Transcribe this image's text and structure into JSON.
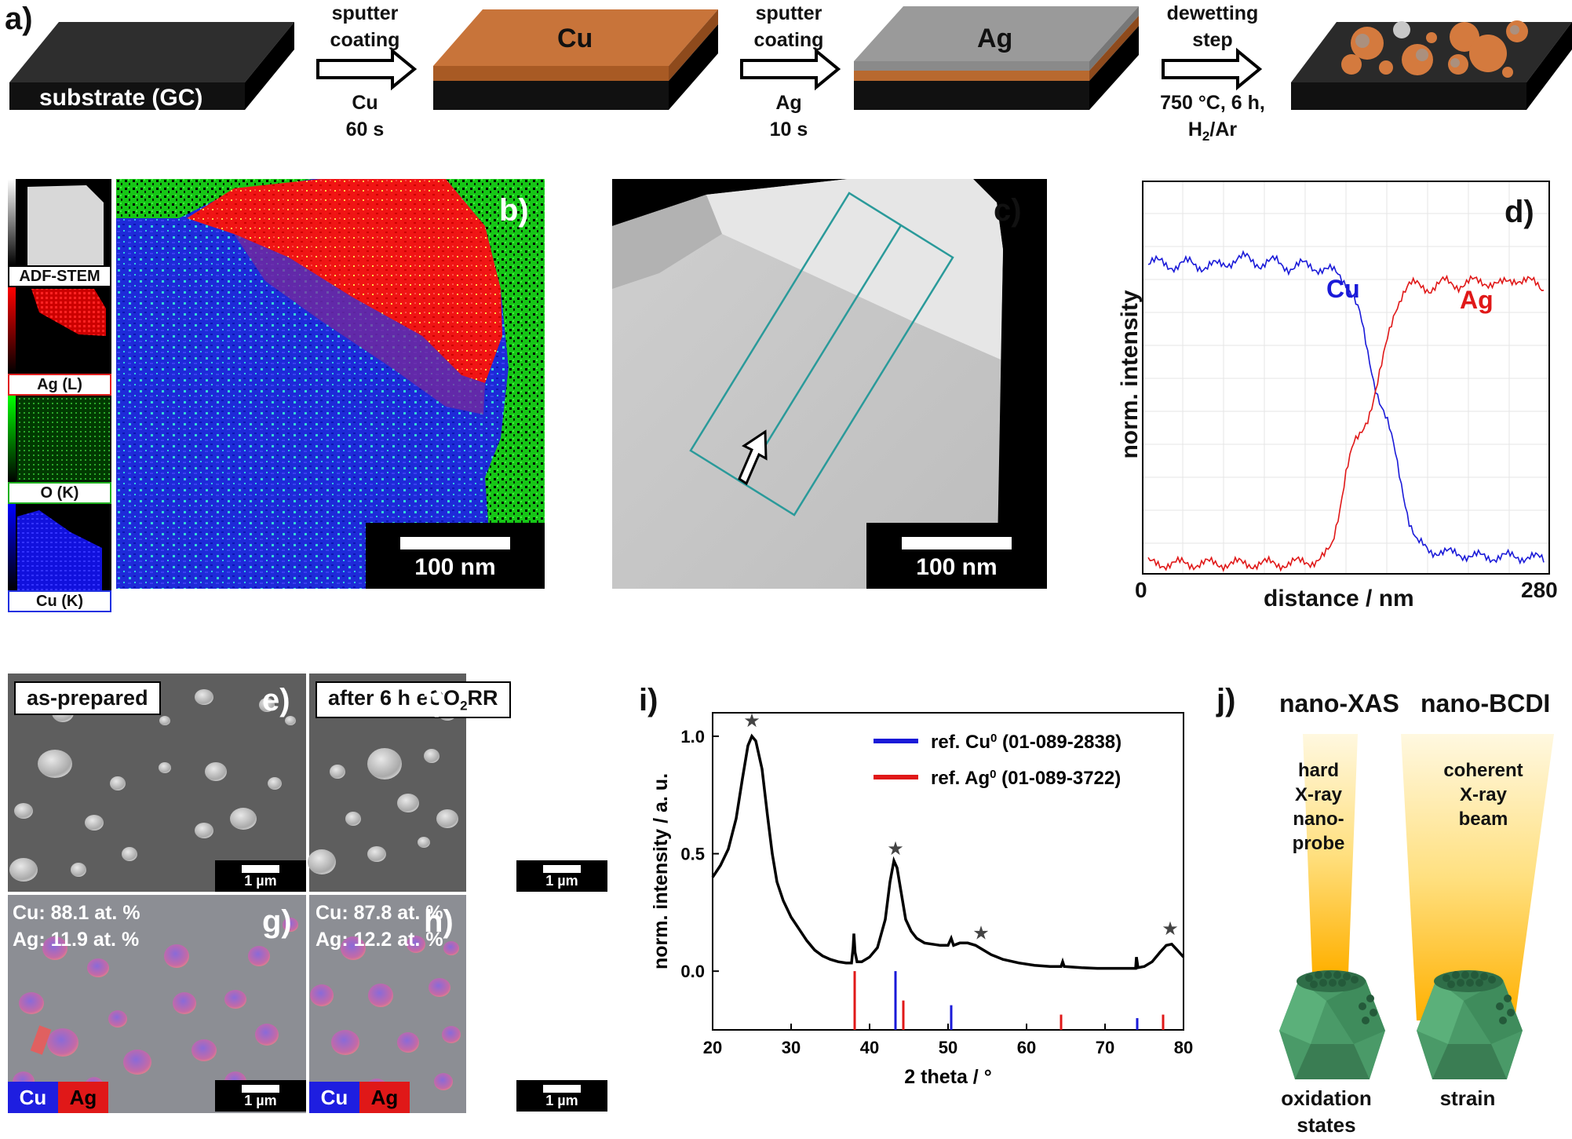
{
  "panel_a": {
    "label": "a)",
    "substrate_label": "substrate (GC)",
    "cu_layer_label": "Cu",
    "ag_layer_label": "Ag",
    "step1": {
      "top_1": "sputter",
      "top_2": "coating",
      "bottom_1": "Cu",
      "bottom_2": "60 s"
    },
    "step2": {
      "top_1": "sputter",
      "top_2": "coating",
      "bottom_1": "Ag",
      "bottom_2": "10 s"
    },
    "step3": {
      "top_1": "dewetting",
      "top_2": "step",
      "bottom_1": "750 °C, 6 h,",
      "bottom_2_main": "H",
      "bottom_2_sub": "2",
      "bottom_2_end": "/Ar"
    }
  },
  "panel_b": {
    "label": "b)",
    "scale_bar": "100 nm",
    "thumbnails": [
      {
        "label": "ADF-STEM",
        "color": "#000000"
      },
      {
        "label": "Ag (L)",
        "color": "#e02020"
      },
      {
        "label": "O (K)",
        "color": "#20b020"
      },
      {
        "label": "Cu (K)",
        "color": "#2030e0"
      }
    ]
  },
  "panel_c": {
    "label": "c)",
    "scale_bar": "100 nm"
  },
  "panel_d": {
    "label": "d)",
    "ylabel": "norm. intensity",
    "xlabel": "distance / nm",
    "x_min_label": "0",
    "x_max_label": "280",
    "cu_label": "Cu",
    "ag_label": "Ag",
    "cu_color": "#1a1ad8",
    "ag_color": "#e01818"
  },
  "panel_e": {
    "label": "e)",
    "tag": "as-prepared",
    "scale_bar": "1 µm"
  },
  "panel_f": {
    "label": "f)",
    "tag_main": "after 6 h eCO",
    "tag_sub": "2",
    "tag_end": "RR",
    "scale_bar": "1 µm"
  },
  "panel_g": {
    "label": "g)",
    "line1": "Cu: 88.1 at. %",
    "line2": "Ag: 11.9 at. %",
    "legend_cu": "Cu",
    "legend_ag": "Ag",
    "scale_bar": "1 µm"
  },
  "panel_h": {
    "label": "h)",
    "line1": "Cu: 87.8 at. %",
    "line2": "Ag: 12.2 at. %",
    "legend_cu": "Cu",
    "legend_ag": "Ag",
    "scale_bar": "1 µm"
  },
  "panel_i": {
    "label": "i)"
  },
  "panel_j": {
    "label": "j)",
    "col1_title": "nano-XAS",
    "col2_title": "nano-BCDI",
    "beam1_lines": [
      "hard",
      "X-ray",
      "nano-",
      "probe"
    ],
    "beam2_lines": [
      "coherent",
      "X-ray",
      "beam"
    ],
    "col1_bottom_1": "oxidation",
    "col1_bottom_2": "states",
    "col2_bottom": "strain"
  },
  "chart_data": [
    {
      "type": "line",
      "xlabel": "2 theta / °",
      "ylabel": "norm. intensity / a. u.",
      "xlim": [
        20,
        80
      ],
      "ylim": [
        -0.25,
        1.1
      ],
      "x_ticks": [
        20,
        30,
        40,
        50,
        60,
        70,
        80
      ],
      "y_ticks": [
        0.0,
        0.5,
        1.0
      ],
      "y_tick_labels": [
        "0.0",
        "0.5",
        "1.0"
      ],
      "grid": false,
      "legend_position": "top-right",
      "series": [
        {
          "color": "#000000",
          "points": [
            [
              20,
              0.4
            ],
            [
              21,
              0.45
            ],
            [
              22,
              0.52
            ],
            [
              23,
              0.65
            ],
            [
              23.8,
              0.82
            ],
            [
              24.5,
              0.96
            ],
            [
              25,
              1.0
            ],
            [
              25.5,
              0.98
            ],
            [
              26.3,
              0.86
            ],
            [
              27,
              0.66
            ],
            [
              27.6,
              0.5
            ],
            [
              28.2,
              0.38
            ],
            [
              29,
              0.3
            ],
            [
              30,
              0.23
            ],
            [
              31,
              0.18
            ],
            [
              32,
              0.13
            ],
            [
              33,
              0.09
            ],
            [
              34,
              0.065
            ],
            [
              35,
              0.05
            ],
            [
              36,
              0.04
            ],
            [
              37,
              0.035
            ],
            [
              37.7,
              0.035
            ],
            [
              37.9,
              0.1
            ],
            [
              38.0,
              0.16
            ],
            [
              38.15,
              0.08
            ],
            [
              38.4,
              0.04
            ],
            [
              39,
              0.04
            ],
            [
              40,
              0.06
            ],
            [
              41,
              0.1
            ],
            [
              42,
              0.22
            ],
            [
              42.6,
              0.38
            ],
            [
              43.1,
              0.47
            ],
            [
              43.5,
              0.44
            ],
            [
              44,
              0.34
            ],
            [
              44.6,
              0.22
            ],
            [
              45.3,
              0.17
            ],
            [
              46,
              0.14
            ],
            [
              47,
              0.12
            ],
            [
              48,
              0.115
            ],
            [
              49,
              0.11
            ],
            [
              50,
              0.11
            ],
            [
              50.4,
              0.14
            ],
            [
              50.7,
              0.11
            ],
            [
              51.5,
              0.12
            ],
            [
              52.5,
              0.12
            ],
            [
              53.5,
              0.11
            ],
            [
              54.5,
              0.09
            ],
            [
              55.5,
              0.07
            ],
            [
              57,
              0.05
            ],
            [
              59,
              0.035
            ],
            [
              61,
              0.025
            ],
            [
              63,
              0.02
            ],
            [
              64.4,
              0.02
            ],
            [
              64.6,
              0.04
            ],
            [
              64.8,
              0.02
            ],
            [
              67,
              0.015
            ],
            [
              69,
              0.012
            ],
            [
              71,
              0.012
            ],
            [
              73,
              0.012
            ],
            [
              73.9,
              0.012
            ],
            [
              74,
              0.06
            ],
            [
              74.2,
              0.015
            ],
            [
              75,
              0.02
            ],
            [
              76,
              0.04
            ],
            [
              77,
              0.08
            ],
            [
              77.8,
              0.11
            ],
            [
              78.5,
              0.115
            ],
            [
              79.2,
              0.09
            ],
            [
              80,
              0.06
            ]
          ]
        }
      ],
      "reference_lines": [
        {
          "name_main": "ref. Cu",
          "name_sup": "0",
          "name_code": " (01-089-2838)",
          "color": "#1a1ad8",
          "peaks": [
            [
              43.3,
              1.0
            ],
            [
              50.4,
              0.42
            ],
            [
              74.1,
              0.2
            ]
          ]
        },
        {
          "name_main": "ref. Ag",
          "name_sup": "0",
          "name_code": " (01-089-3722)",
          "color": "#e01818",
          "peaks": [
            [
              38.1,
              1.0
            ],
            [
              44.3,
              0.5
            ],
            [
              64.4,
              0.26
            ],
            [
              77.4,
              0.26
            ]
          ]
        }
      ],
      "star_markers_x": [
        25,
        43.3,
        54.2,
        78.3
      ]
    },
    {
      "type": "line",
      "xlabel": "distance / nm",
      "ylabel": "norm. intensity",
      "xlim": [
        0,
        280
      ],
      "ylim": [
        0,
        1
      ],
      "grid": true,
      "series": [
        {
          "name": "Cu",
          "color": "#1a1ad8",
          "points": [
            [
              0,
              0.87
            ],
            [
              10,
              0.88
            ],
            [
              20,
              0.86
            ],
            [
              30,
              0.88
            ],
            [
              40,
              0.86
            ],
            [
              50,
              0.87
            ],
            [
              60,
              0.88
            ],
            [
              70,
              0.89
            ],
            [
              80,
              0.87
            ],
            [
              90,
              0.88
            ],
            [
              100,
              0.86
            ],
            [
              110,
              0.87
            ],
            [
              120,
              0.86
            ],
            [
              130,
              0.85
            ],
            [
              135,
              0.84
            ],
            [
              140,
              0.82
            ],
            [
              145,
              0.78
            ],
            [
              150,
              0.72
            ],
            [
              155,
              0.62
            ],
            [
              160,
              0.53
            ],
            [
              165,
              0.46
            ],
            [
              170,
              0.4
            ],
            [
              175,
              0.32
            ],
            [
              180,
              0.22
            ],
            [
              185,
              0.12
            ],
            [
              190,
              0.06
            ],
            [
              200,
              0.04
            ],
            [
              210,
              0.03
            ],
            [
              220,
              0.03
            ],
            [
              230,
              0.02
            ],
            [
              240,
              0.02
            ],
            [
              250,
              0.02
            ],
            [
              260,
              0.02
            ],
            [
              270,
              0.02
            ],
            [
              280,
              0.01
            ]
          ]
        },
        {
          "name": "Ag",
          "color": "#e01818",
          "points": [
            [
              0,
              0.0
            ],
            [
              20,
              0.0
            ],
            [
              40,
              0.0
            ],
            [
              60,
              0.0
            ],
            [
              80,
              0.0
            ],
            [
              100,
              0.0
            ],
            [
              120,
              0.01
            ],
            [
              125,
              0.02
            ],
            [
              130,
              0.05
            ],
            [
              135,
              0.15
            ],
            [
              140,
              0.27
            ],
            [
              145,
              0.34
            ],
            [
              150,
              0.37
            ],
            [
              155,
              0.42
            ],
            [
              160,
              0.49
            ],
            [
              165,
              0.57
            ],
            [
              170,
              0.66
            ],
            [
              175,
              0.74
            ],
            [
              180,
              0.79
            ],
            [
              185,
              0.81
            ],
            [
              190,
              0.81
            ],
            [
              200,
              0.8
            ],
            [
              210,
              0.82
            ],
            [
              220,
              0.81
            ],
            [
              230,
              0.82
            ],
            [
              240,
              0.82
            ],
            [
              250,
              0.81
            ],
            [
              260,
              0.83
            ],
            [
              270,
              0.82
            ],
            [
              280,
              0.8
            ]
          ]
        }
      ]
    }
  ]
}
